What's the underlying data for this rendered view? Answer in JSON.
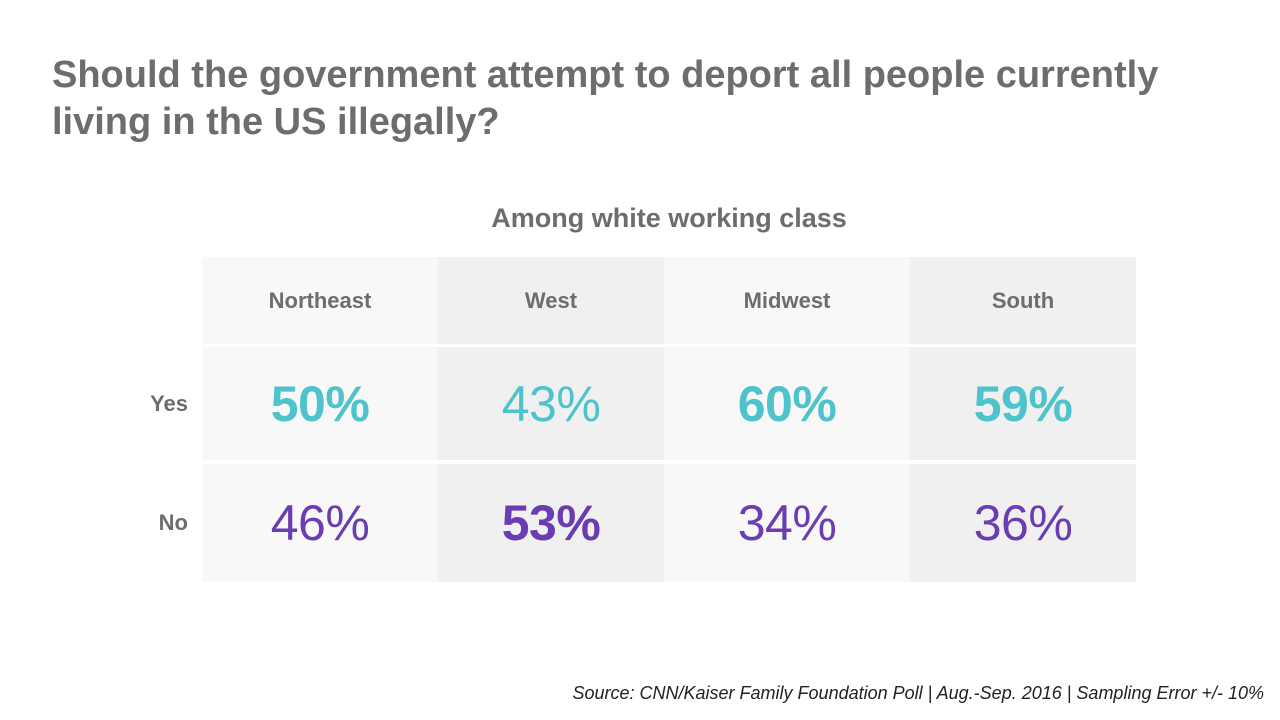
{
  "title": "Should the government attempt to deport all people currently living in the US illegally?",
  "subtitle": "Among white working class",
  "source": "Source: CNN/Kaiser Family Foundation Poll | Aug.-Sep. 2016 | Sampling Error +/- 10%",
  "colors": {
    "yes": "#4fc3cc",
    "no": "#6a3db3",
    "text_gray": "#6d6d6d",
    "cell_light": "#f8f8f8",
    "cell_dark": "#f0f0f0"
  },
  "chart_data": {
    "type": "table",
    "title": "Should the government attempt to deport all people currently living in the US illegally?",
    "subtitle": "Among white working class",
    "columns": [
      "Northeast",
      "West",
      "Midwest",
      "South"
    ],
    "rows": [
      {
        "label": "Yes",
        "values": [
          50,
          43,
          60,
          59
        ],
        "display": [
          "50%",
          "43%",
          "60%",
          "59%"
        ],
        "emphasized": [
          true,
          false,
          true,
          true
        ]
      },
      {
        "label": "No",
        "values": [
          46,
          53,
          34,
          36
        ],
        "display": [
          "46%",
          "53%",
          "34%",
          "36%"
        ],
        "emphasized": [
          false,
          true,
          false,
          false
        ]
      }
    ],
    "unit": "%"
  }
}
